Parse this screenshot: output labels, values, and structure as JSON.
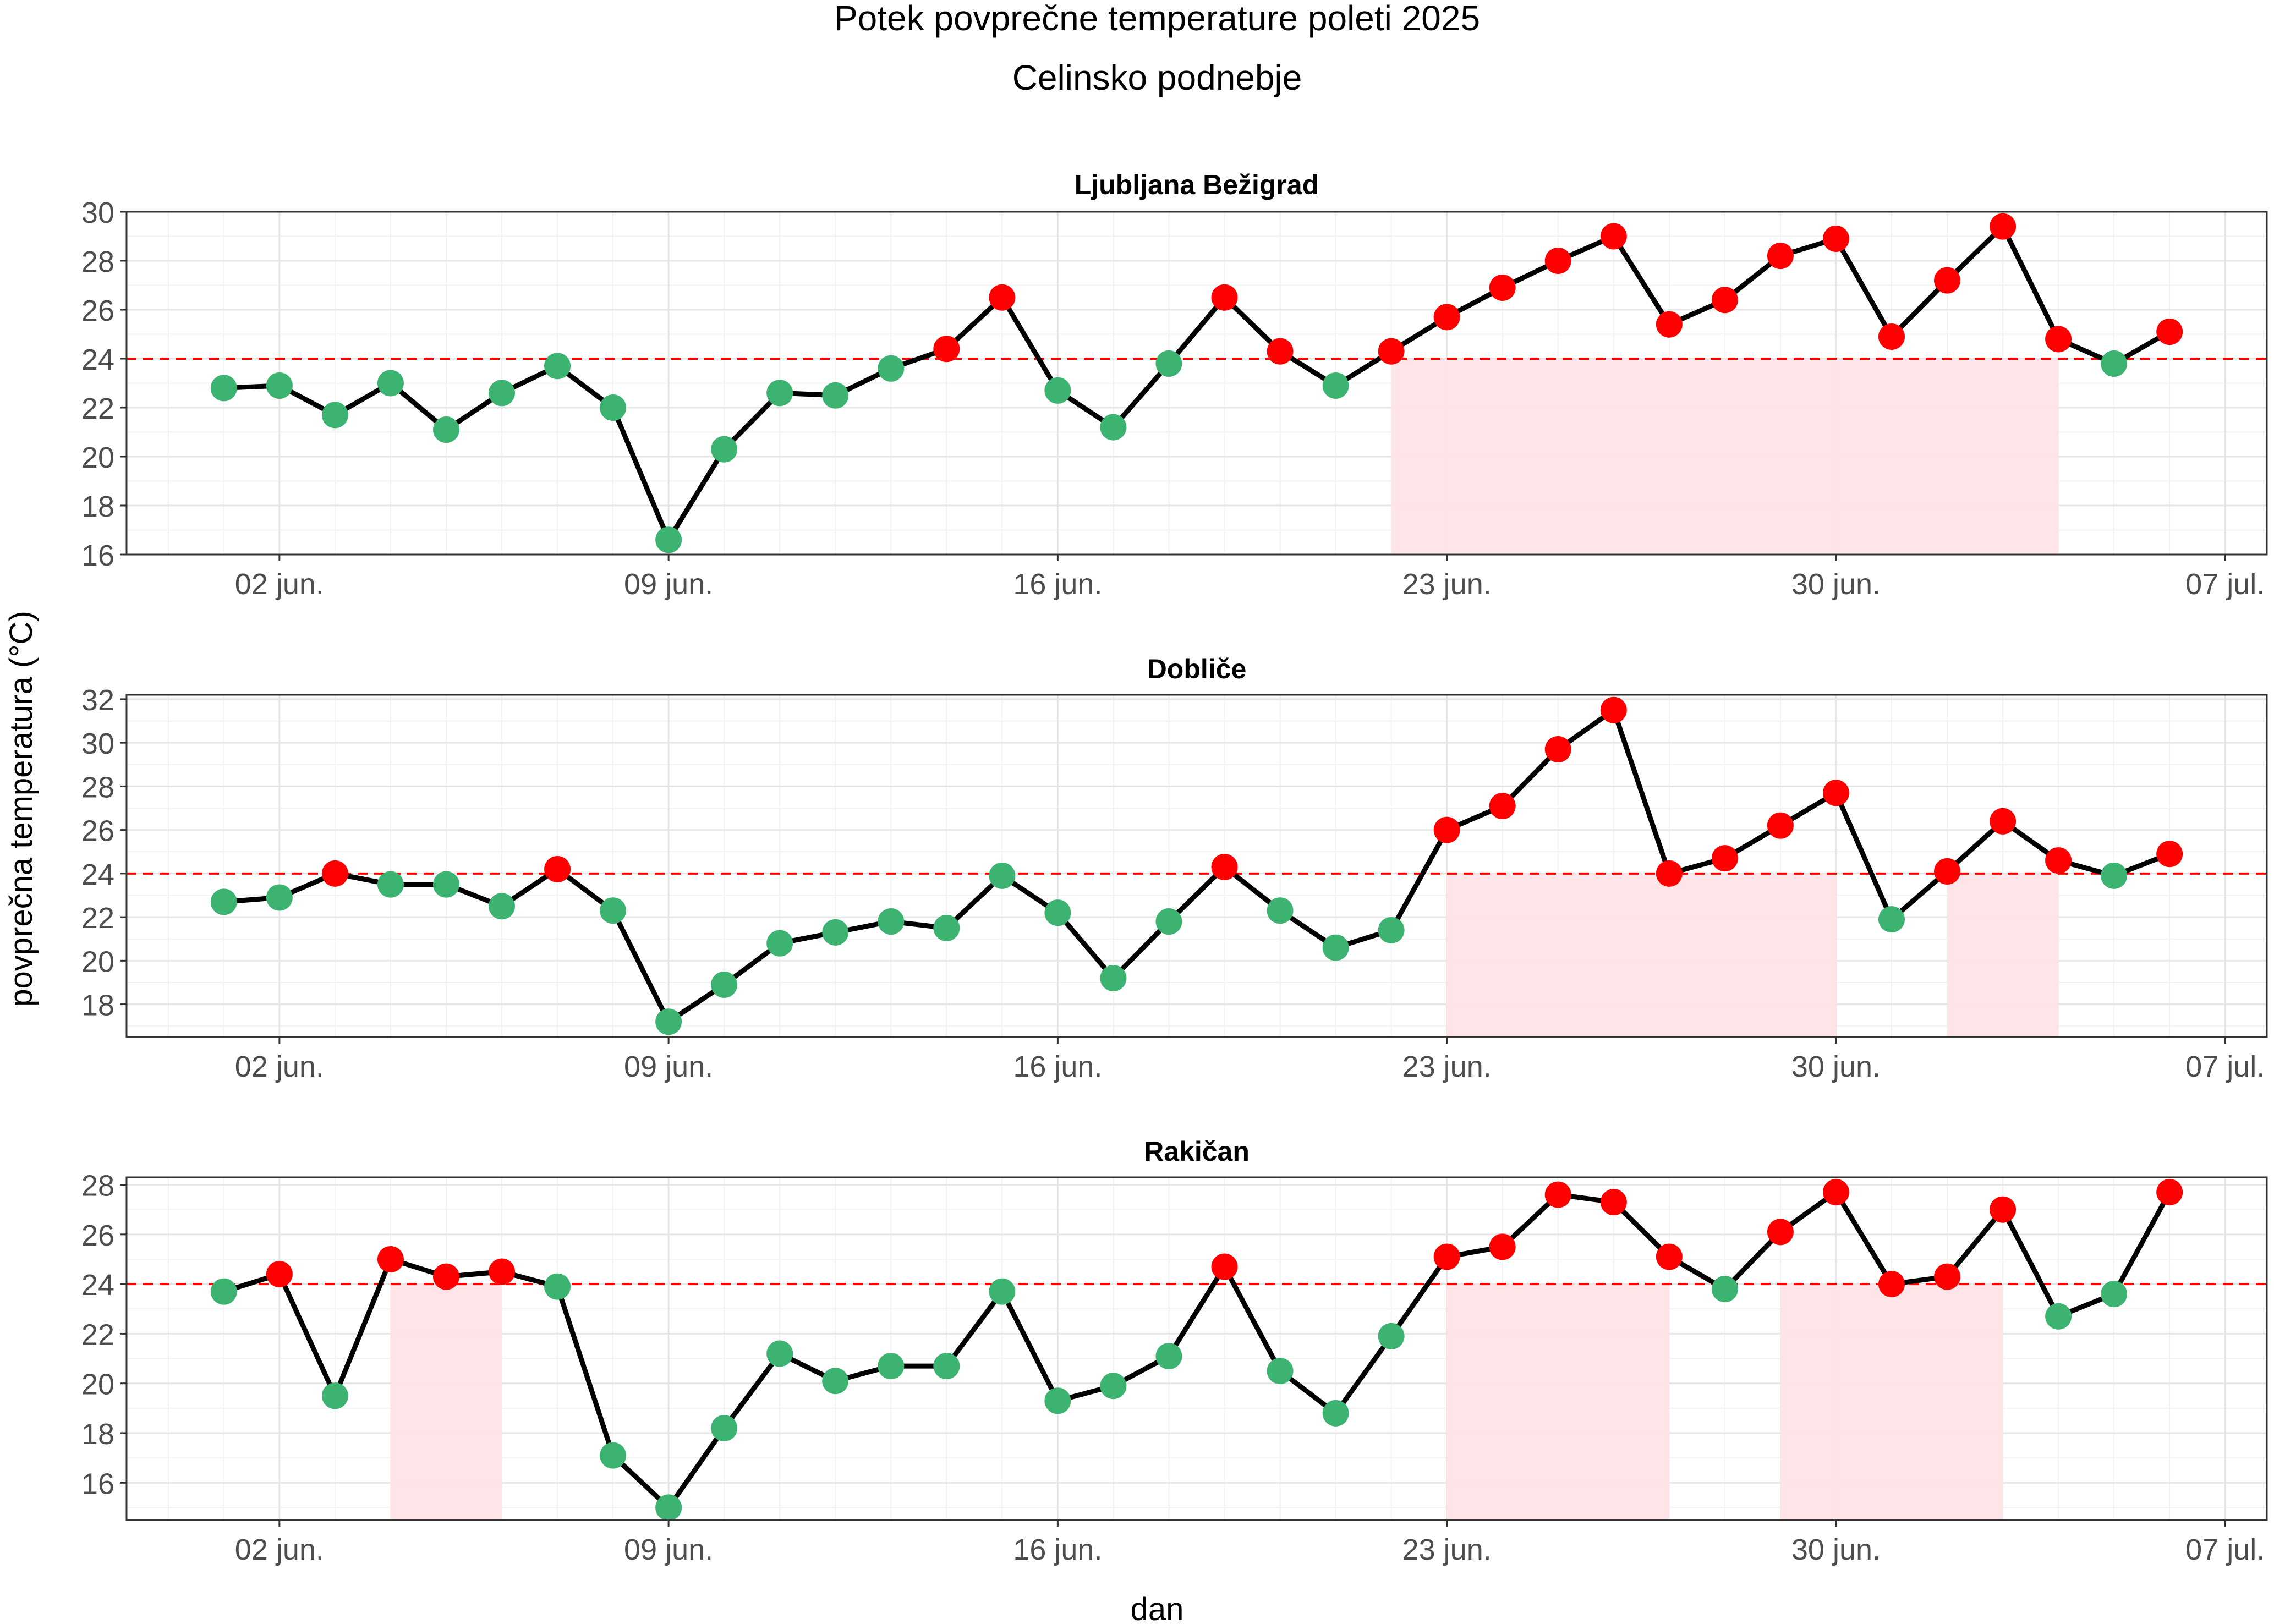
{
  "chart_data": {
    "type": "line",
    "title": "Potek povprečne temperature poleti 2025",
    "subtitle": "Celinsko podnebje",
    "xlabel": "dan",
    "ylabel": "povprečna temperatura (°C)",
    "x_start": "2025-06-01",
    "x_tick_labels": [
      "02 jun.",
      "09 jun.",
      "16 jun.",
      "23 jun.",
      "30 jun.",
      "07 jul."
    ],
    "x_tick_dates": [
      "2025-06-02",
      "2025-06-09",
      "2025-06-16",
      "2025-06-23",
      "2025-06-30",
      "2025-07-07"
    ],
    "threshold": 24,
    "grid": true,
    "colors": {
      "line": "#000000",
      "below_threshold": "#3cb371",
      "above_threshold": "#ff0000",
      "threshold_line": "#ff0000",
      "shading": "#ffe4e6",
      "panel_border": "#333333",
      "grid_major": "#e6e6e6",
      "grid_minor": "#f2f2f2"
    },
    "panels": [
      {
        "name": "Ljubljana Bežigrad",
        "ylim": [
          16,
          30
        ],
        "y_ticks": [
          16,
          18,
          20,
          22,
          24,
          26,
          28,
          30
        ],
        "dates": [
          "2025-06-01",
          "2025-06-02",
          "2025-06-03",
          "2025-06-04",
          "2025-06-05",
          "2025-06-06",
          "2025-06-07",
          "2025-06-08",
          "2025-06-09",
          "2025-06-10",
          "2025-06-11",
          "2025-06-12",
          "2025-06-13",
          "2025-06-14",
          "2025-06-15",
          "2025-06-16",
          "2025-06-17",
          "2025-06-18",
          "2025-06-19",
          "2025-06-20",
          "2025-06-21",
          "2025-06-22",
          "2025-06-23",
          "2025-06-24",
          "2025-06-25",
          "2025-06-26",
          "2025-06-27",
          "2025-06-28",
          "2025-06-29",
          "2025-06-30",
          "2025-07-01",
          "2025-07-02",
          "2025-07-03",
          "2025-07-04",
          "2025-07-05",
          "2025-07-06"
        ],
        "values": [
          22.8,
          22.9,
          21.7,
          23.0,
          21.1,
          22.6,
          23.7,
          22.0,
          16.6,
          20.3,
          22.6,
          22.5,
          23.6,
          24.4,
          26.5,
          22.7,
          21.2,
          23.8,
          26.5,
          24.3,
          22.9,
          24.3,
          25.7,
          26.9,
          28.0,
          29.0,
          25.4,
          26.4,
          28.2,
          28.9,
          24.9,
          27.2,
          29.4,
          24.8,
          23.8,
          25.1
        ],
        "shaded_ranges": [
          [
            "2025-06-22",
            "2025-07-04"
          ]
        ]
      },
      {
        "name": "Dobliče",
        "ylim": [
          16.5,
          32.2
        ],
        "y_ticks": [
          18,
          20,
          22,
          24,
          26,
          28,
          30,
          32
        ],
        "dates": [
          "2025-06-01",
          "2025-06-02",
          "2025-06-03",
          "2025-06-04",
          "2025-06-05",
          "2025-06-06",
          "2025-06-07",
          "2025-06-08",
          "2025-06-09",
          "2025-06-10",
          "2025-06-11",
          "2025-06-12",
          "2025-06-13",
          "2025-06-14",
          "2025-06-15",
          "2025-06-16",
          "2025-06-17",
          "2025-06-18",
          "2025-06-19",
          "2025-06-20",
          "2025-06-21",
          "2025-06-22",
          "2025-06-23",
          "2025-06-24",
          "2025-06-25",
          "2025-06-26",
          "2025-06-27",
          "2025-06-28",
          "2025-06-29",
          "2025-06-30",
          "2025-07-01",
          "2025-07-02",
          "2025-07-03",
          "2025-07-04",
          "2025-07-05",
          "2025-07-06"
        ],
        "values": [
          22.7,
          22.9,
          24.0,
          23.5,
          23.5,
          22.5,
          24.2,
          22.3,
          17.2,
          18.9,
          20.8,
          21.3,
          21.8,
          21.5,
          23.9,
          22.2,
          19.2,
          21.8,
          24.3,
          22.3,
          20.6,
          21.4,
          26.0,
          27.1,
          29.7,
          31.5,
          24.0,
          24.7,
          26.2,
          27.7,
          21.9,
          24.1,
          26.4,
          24.6,
          23.9,
          24.9
        ],
        "shaded_ranges": [
          [
            "2025-06-23",
            "2025-06-30"
          ],
          [
            "2025-07-02",
            "2025-07-04"
          ]
        ]
      },
      {
        "name": "Rakičan",
        "ylim": [
          14.5,
          28.3
        ],
        "y_ticks": [
          16,
          18,
          20,
          22,
          24,
          26,
          28
        ],
        "dates": [
          "2025-06-01",
          "2025-06-02",
          "2025-06-03",
          "2025-06-04",
          "2025-06-05",
          "2025-06-06",
          "2025-06-07",
          "2025-06-08",
          "2025-06-09",
          "2025-06-10",
          "2025-06-11",
          "2025-06-12",
          "2025-06-13",
          "2025-06-14",
          "2025-06-15",
          "2025-06-16",
          "2025-06-17",
          "2025-06-18",
          "2025-06-19",
          "2025-06-20",
          "2025-06-21",
          "2025-06-22",
          "2025-06-23",
          "2025-06-24",
          "2025-06-25",
          "2025-06-26",
          "2025-06-27",
          "2025-06-28",
          "2025-06-29",
          "2025-06-30",
          "2025-07-01",
          "2025-07-02",
          "2025-07-03",
          "2025-07-04",
          "2025-07-05",
          "2025-07-06"
        ],
        "values": [
          23.7,
          24.4,
          19.5,
          25.0,
          24.3,
          24.5,
          23.9,
          17.1,
          15.0,
          18.2,
          21.2,
          20.1,
          20.7,
          20.7,
          23.7,
          19.3,
          19.9,
          21.1,
          24.7,
          20.5,
          18.8,
          21.9,
          25.1,
          25.5,
          27.6,
          27.3,
          25.1,
          23.8,
          26.1,
          27.7,
          24.0,
          24.3,
          27.0,
          22.7,
          23.6,
          27.7
        ],
        "shaded_ranges": [
          [
            "2025-06-04",
            "2025-06-06"
          ],
          [
            "2025-06-23",
            "2025-06-27"
          ],
          [
            "2025-06-29",
            "2025-07-03"
          ]
        ]
      }
    ]
  }
}
